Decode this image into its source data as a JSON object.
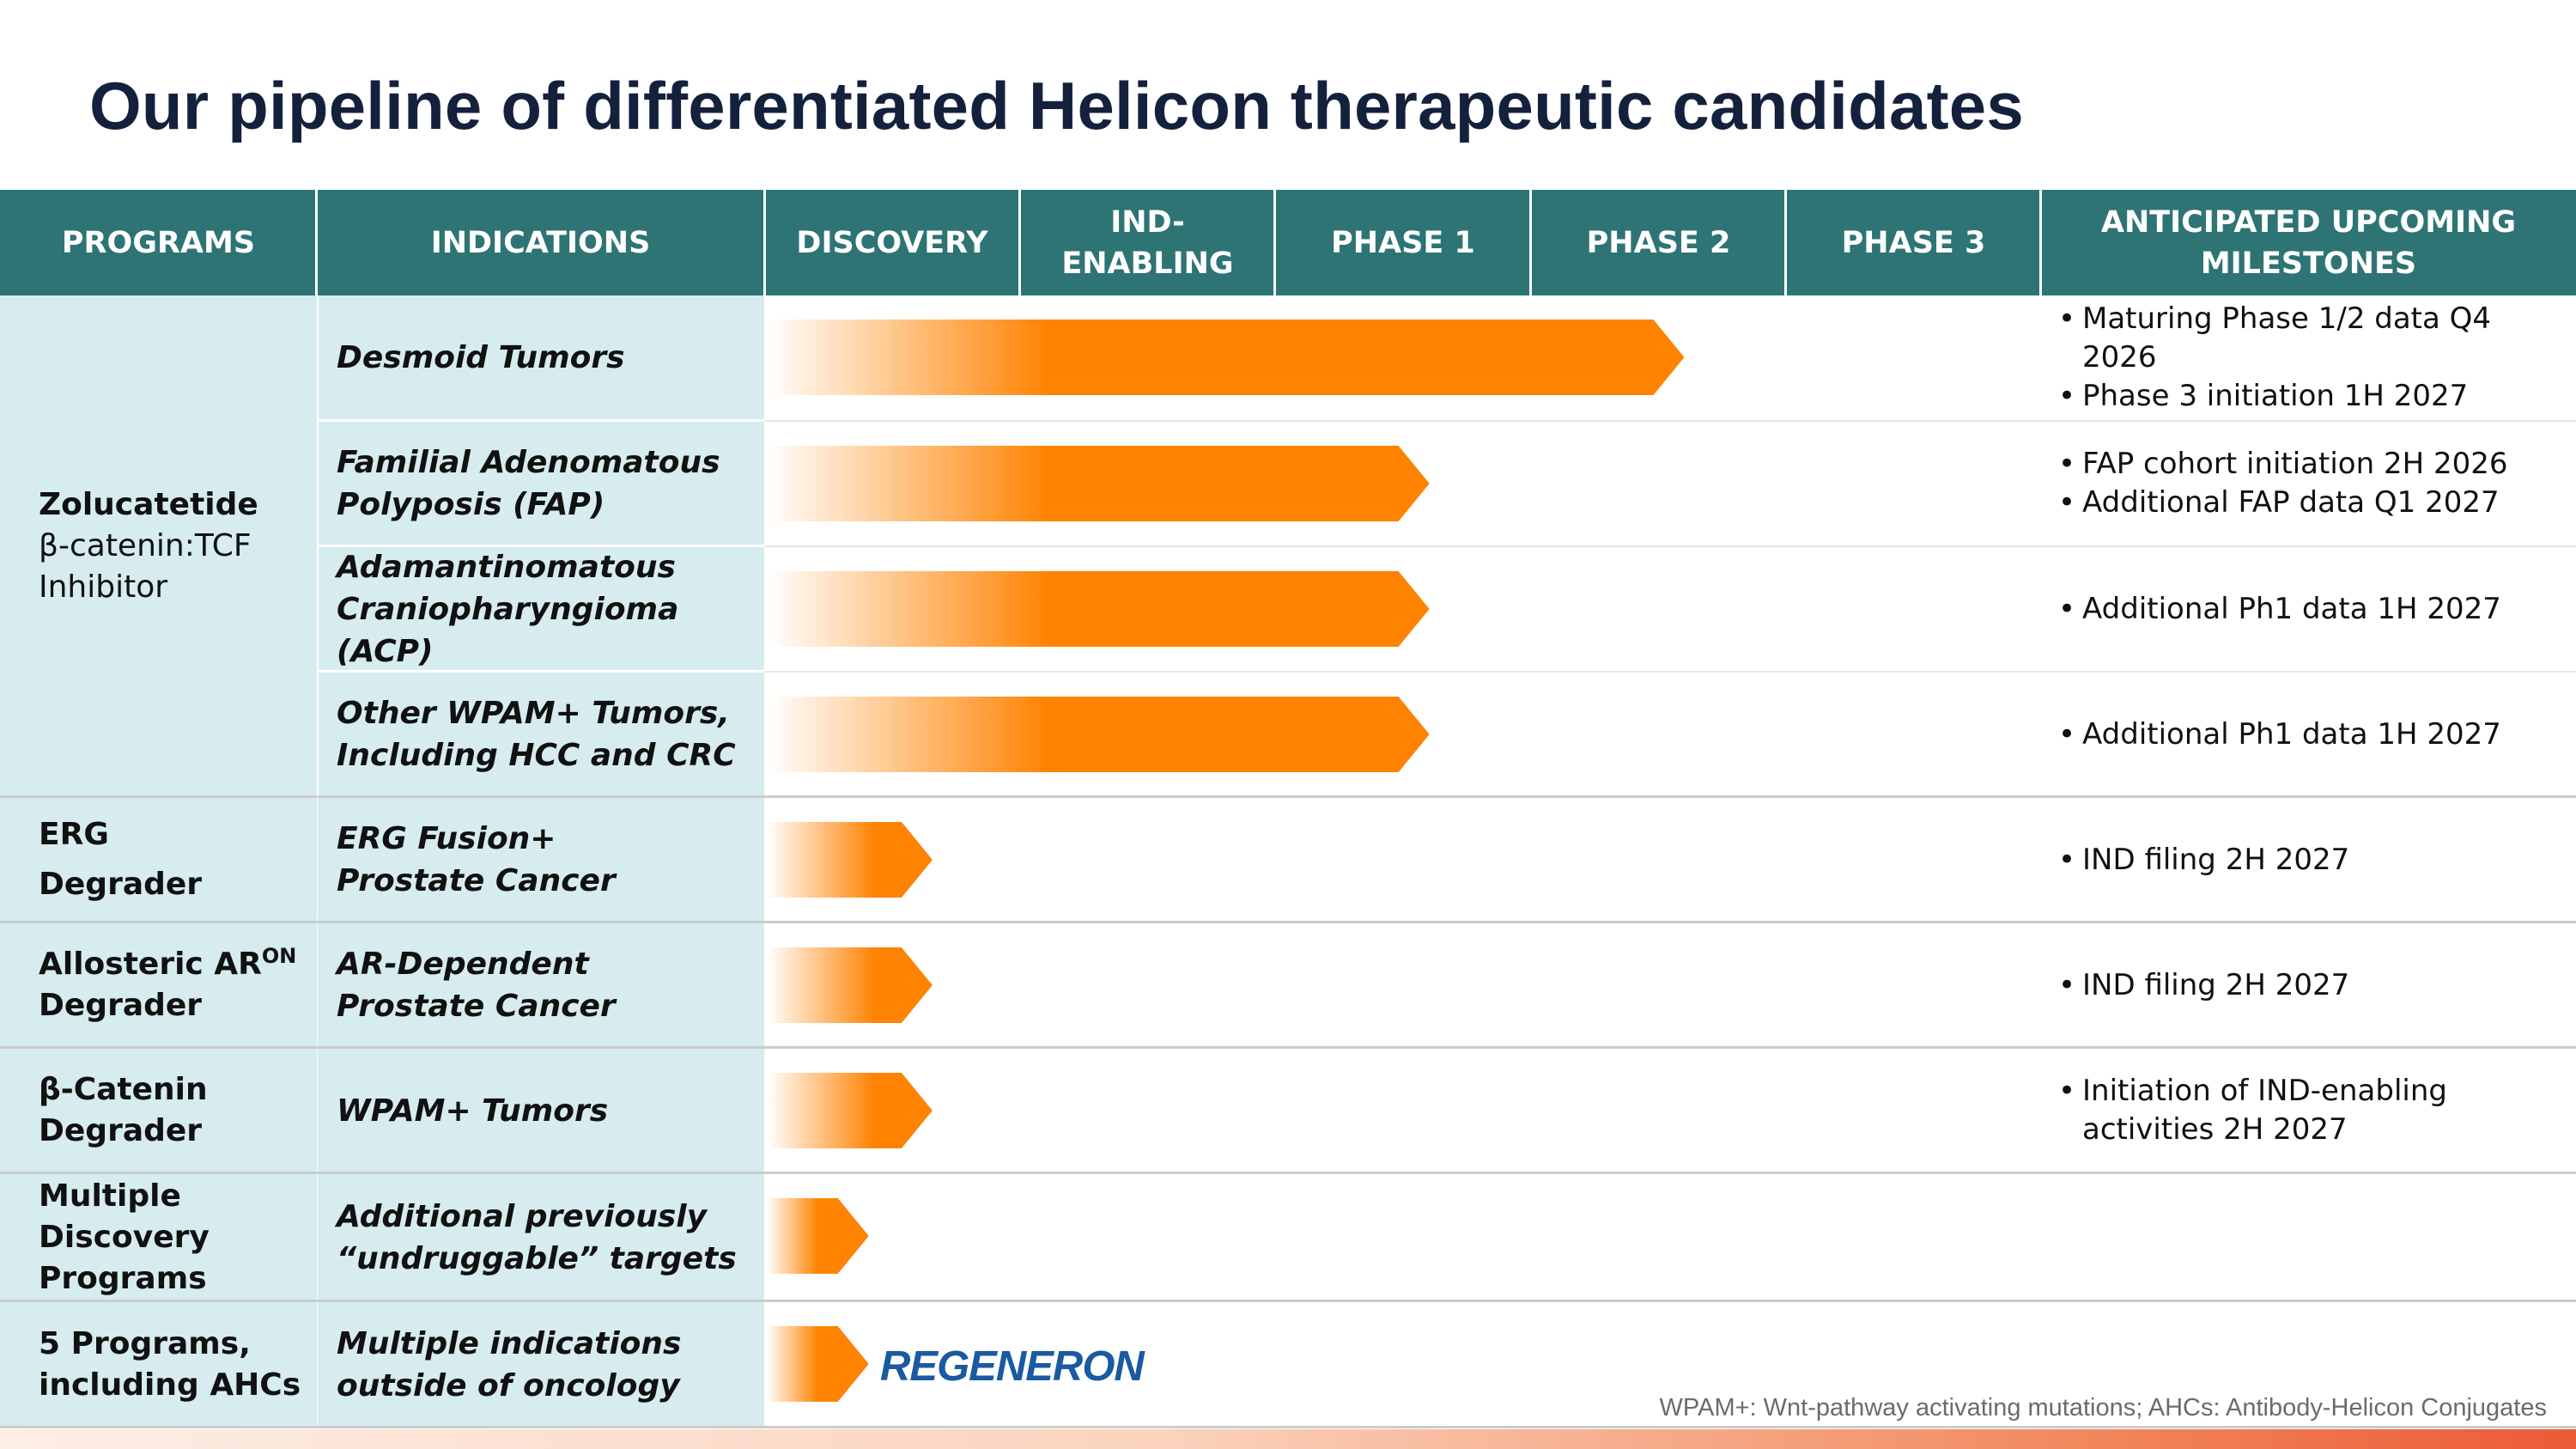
{
  "title": "Our pipeline of differentiated Helicon therapeutic candidates",
  "headers": {
    "programs": "PROGRAMS",
    "indications": "INDICATIONS",
    "discovery": "DISCOVERY",
    "ind_enabling_1": "IND-",
    "ind_enabling_2": "ENABLING",
    "phase1": "PHASE 1",
    "phase2": "PHASE 2",
    "phase3": "PHASE 3",
    "milestones_1": "ANTICIPATED UPCOMING",
    "milestones_2": "MILESTONES"
  },
  "colors": {
    "header": "#2e7474",
    "cell": "#d6ecef",
    "bar": "#ff8200",
    "title": "#14213d",
    "partner": "#1a5aa0"
  },
  "programs": [
    {
      "name": "Zolucatetide",
      "sub1": "β-catenin:TCF",
      "sub2": "Inhibitor"
    },
    {
      "name1": "ERG",
      "name2": "Degrader"
    },
    {
      "name1": "Allosteric AR",
      "sup": "ON",
      "name2": "Degrader"
    },
    {
      "name1": "β-Catenin",
      "name2": "Degrader"
    },
    {
      "name1": "Multiple",
      "name2": "Discovery",
      "name3": "Programs"
    },
    {
      "name1": "5 Programs,",
      "name2": "including AHCs"
    }
  ],
  "rows": [
    {
      "ind1": "Desmoid Tumors",
      "stage": "Phase 2",
      "progress": 0.72,
      "milestones": [
        "Maturing Phase 1/2 data Q4 2026",
        "Phase 3 initiation 1H 2027"
      ]
    },
    {
      "ind1": "Familial Adenomatous",
      "ind2": "Polyposis (FAP)",
      "stage": "Phase 1",
      "progress": 0.52,
      "milestones": [
        "FAP cohort initiation 2H 2026",
        "Additional FAP data Q1 2027"
      ]
    },
    {
      "ind1": "Adamantinomatous",
      "ind2": "Craniopharyngioma (ACP)",
      "stage": "Phase 1",
      "progress": 0.52,
      "milestones": [
        "Additional Ph1 data 1H 2027"
      ]
    },
    {
      "ind1": "Other WPAM+ Tumors,",
      "ind2": "Including HCC and CRC",
      "stage": "Phase 1",
      "progress": 0.52,
      "milestones": [
        "Additional Ph1 data 1H 2027"
      ]
    },
    {
      "ind1": "ERG Fusion+",
      "ind2": "Prostate Cancer",
      "stage": "Discovery",
      "progress": 0.13,
      "milestones": [
        "IND filing 2H 2027"
      ]
    },
    {
      "ind1": "AR-Dependent",
      "ind2": "Prostate Cancer",
      "stage": "Discovery",
      "progress": 0.13,
      "milestones": [
        "IND filing 2H 2027"
      ]
    },
    {
      "ind1": "WPAM+ Tumors",
      "stage": "Discovery",
      "progress": 0.13,
      "milestones": [
        "Initiation of IND-enabling",
        "activities 2H 2027"
      ]
    },
    {
      "ind1": "Additional previously",
      "ind2": "“undruggable” targets",
      "stage": "Discovery",
      "progress": 0.08,
      "milestones": []
    },
    {
      "ind1": "Multiple indications",
      "ind2": "outside of oncology",
      "stage": "Discovery",
      "progress": 0.08,
      "milestones": [],
      "partner": "REGENERON"
    }
  ],
  "footnote": "WPAM+: Wnt-pathway activating mutations; AHCs: Antibody-Helicon Conjugates"
}
